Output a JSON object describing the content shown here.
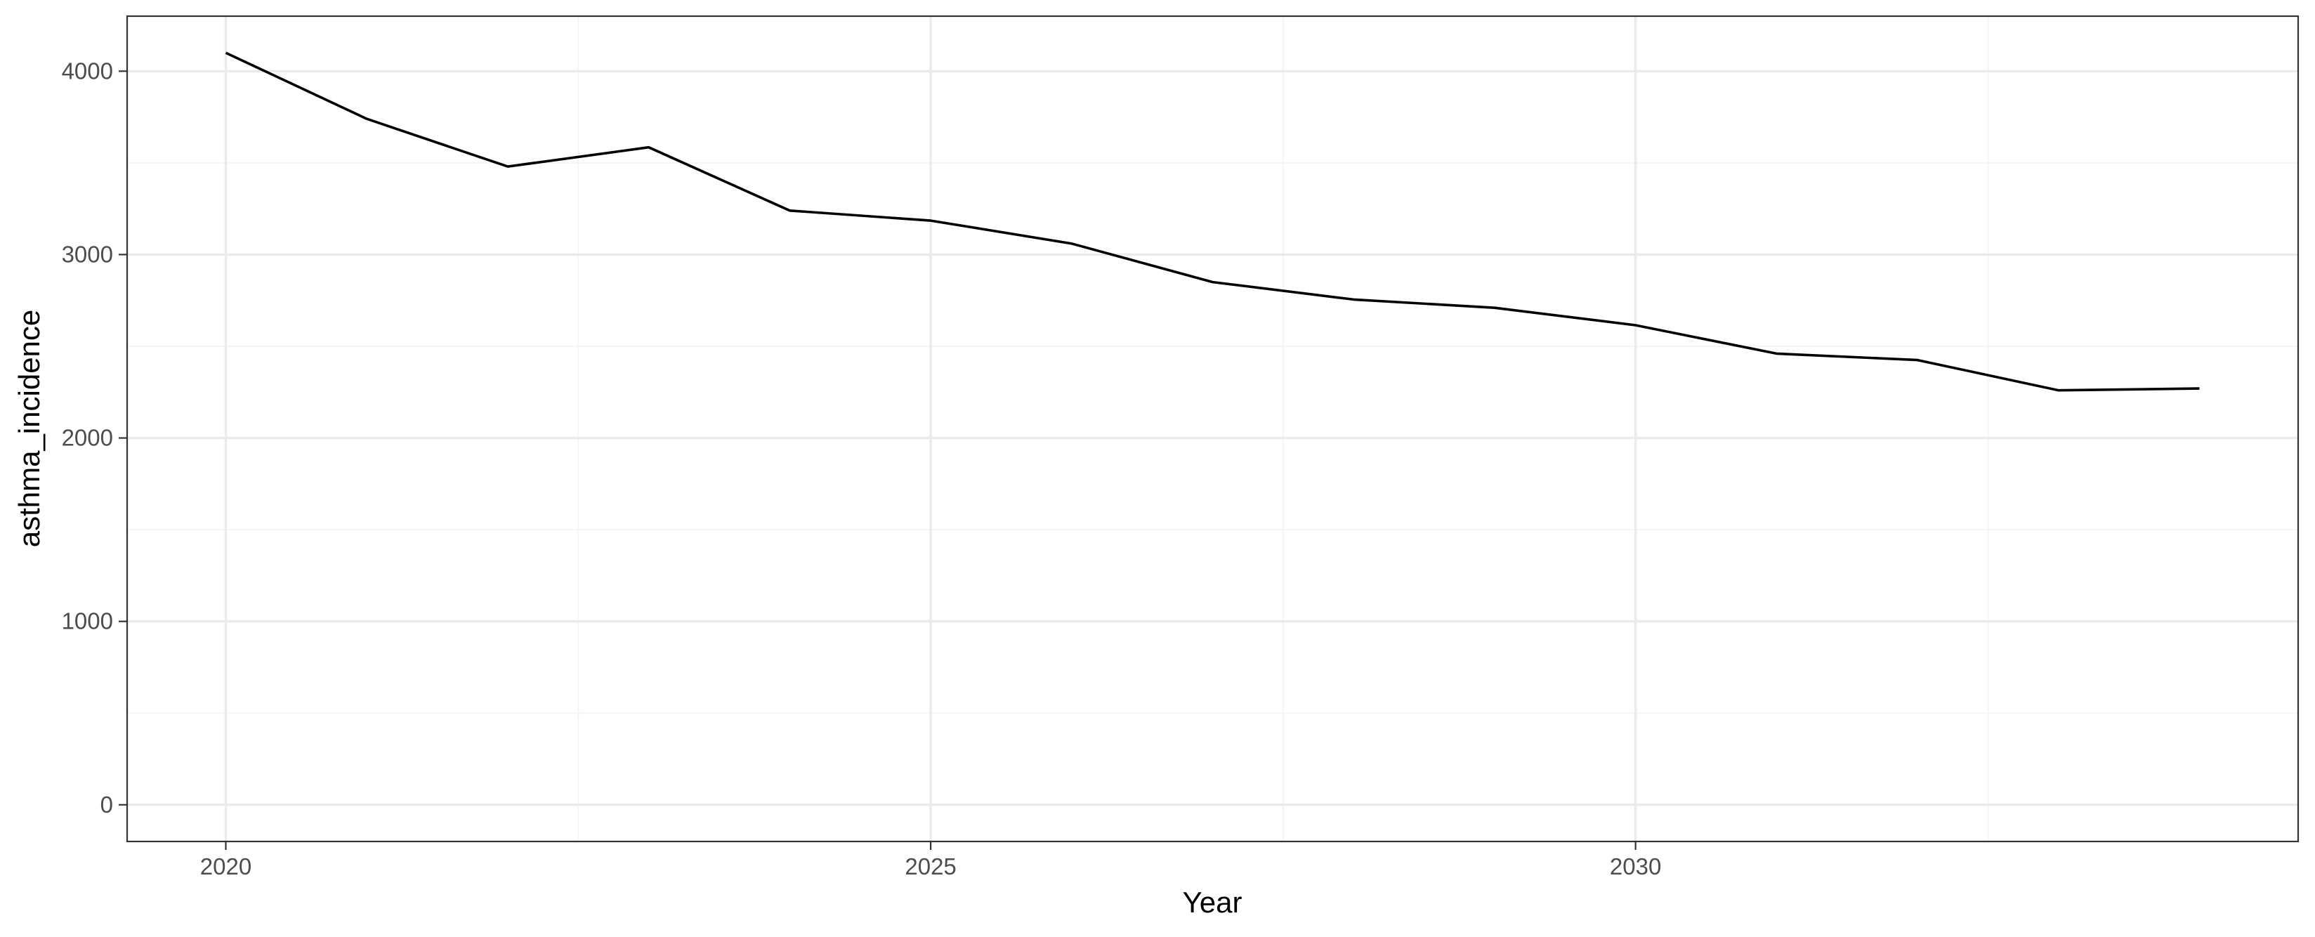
{
  "chart_data": {
    "type": "line",
    "title": "",
    "xlabel": "Year",
    "ylabel": "asthma_incidence",
    "xlim": [
      2019.3,
      2034.7
    ],
    "ylim": [
      -200,
      4300
    ],
    "x_ticks": [
      2020,
      2025,
      2030
    ],
    "x_tick_labels": [
      "2020",
      "2025",
      "2030"
    ],
    "x_minor_ticks": [
      2022.5,
      2027.5,
      2032.5
    ],
    "y_ticks": [
      0,
      1000,
      2000,
      3000,
      4000
    ],
    "y_tick_labels": [
      "0",
      "1000",
      "2000",
      "3000",
      "4000"
    ],
    "y_minor_ticks": [
      500,
      1500,
      2500,
      3500
    ],
    "grid": true,
    "legend": "none",
    "series": [
      {
        "color": "#000000",
        "x": [
          2020,
          2021,
          2022,
          2023,
          2024,
          2025,
          2026,
          2027,
          2028,
          2029,
          2030,
          2031,
          2032,
          2033,
          2034
        ],
        "y": [
          4100,
          3740,
          3480,
          3585,
          3240,
          3185,
          3060,
          2850,
          2755,
          2710,
          2615,
          2460,
          2425,
          2260,
          2270
        ]
      }
    ],
    "colors": {
      "panel_border": "#333333",
      "grid_major": "#ebebeb",
      "grid_minor": "#f5f5f5",
      "tick_label": "#4d4d4d",
      "tick_mark": "#333333",
      "axis_title": "#000000",
      "line": "#000000"
    }
  }
}
